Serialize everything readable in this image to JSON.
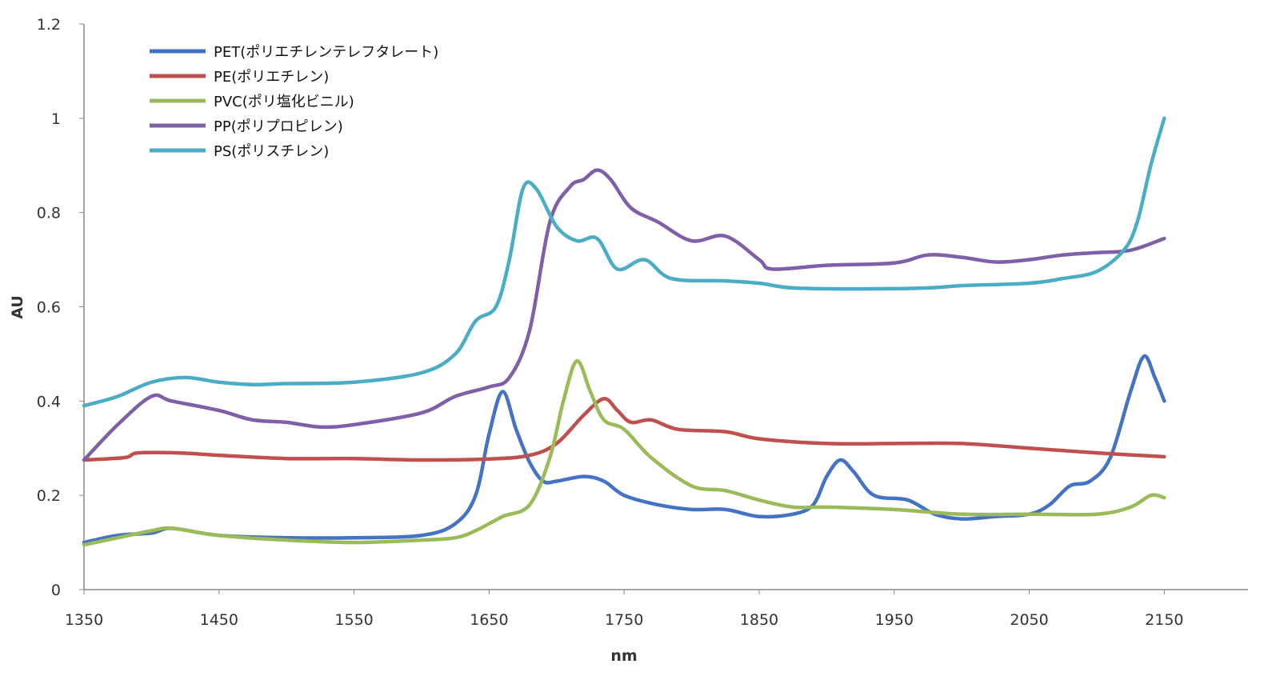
{
  "chart_data": {
    "type": "line",
    "title": "",
    "xlabel": "nm",
    "ylabel": "AU",
    "xlim": [
      1350,
      2212
    ],
    "ylim": [
      0,
      1.2
    ],
    "grid": false,
    "legend_position": "top-left",
    "x_ticks": [
      "1350",
      "1450",
      "1550",
      "1650",
      "1750",
      "1850",
      "1950",
      "2050",
      "2150"
    ],
    "y_ticks": [
      "0",
      "0.2",
      "0.4",
      "0.6",
      "0.8",
      "1",
      "1.2"
    ],
    "series": [
      {
        "name": "PET(ポリエチレンテレフタレート)",
        "color": "#4472C4",
        "x": [
          1350,
          1375,
          1400,
          1415,
          1450,
          1500,
          1550,
          1600,
          1625,
          1640,
          1650,
          1660,
          1670,
          1680,
          1690,
          1700,
          1720,
          1735,
          1750,
          1775,
          1800,
          1825,
          1850,
          1875,
          1890,
          1900,
          1910,
          1920,
          1935,
          1960,
          1980,
          2000,
          2025,
          2050,
          2065,
          2080,
          2095,
          2110,
          2125,
          2135,
          2143,
          2150
        ],
        "y": [
          0.1,
          0.115,
          0.12,
          0.13,
          0.115,
          0.11,
          0.11,
          0.115,
          0.14,
          0.2,
          0.33,
          0.42,
          0.34,
          0.27,
          0.23,
          0.23,
          0.24,
          0.23,
          0.2,
          0.18,
          0.17,
          0.17,
          0.155,
          0.16,
          0.18,
          0.24,
          0.275,
          0.25,
          0.2,
          0.19,
          0.16,
          0.15,
          0.155,
          0.16,
          0.18,
          0.22,
          0.23,
          0.28,
          0.42,
          0.495,
          0.45,
          0.4
        ]
      },
      {
        "name": "PE(ポリエチレン)",
        "color": "#C0504D",
        "x": [
          1350,
          1380,
          1390,
          1420,
          1450,
          1500,
          1550,
          1600,
          1650,
          1680,
          1700,
          1720,
          1735,
          1745,
          1755,
          1770,
          1790,
          1825,
          1850,
          1900,
          1950,
          2000,
          2050,
          2100,
          2150
        ],
        "y": [
          0.275,
          0.28,
          0.29,
          0.29,
          0.285,
          0.278,
          0.278,
          0.275,
          0.277,
          0.285,
          0.31,
          0.37,
          0.405,
          0.38,
          0.355,
          0.36,
          0.34,
          0.335,
          0.32,
          0.31,
          0.31,
          0.31,
          0.3,
          0.29,
          0.282
        ]
      },
      {
        "name": "PVC(ポリ塩化ビニル)",
        "color": "#9BBB59",
        "x": [
          1350,
          1375,
          1400,
          1415,
          1450,
          1500,
          1550,
          1600,
          1625,
          1640,
          1660,
          1680,
          1695,
          1705,
          1715,
          1725,
          1735,
          1750,
          1770,
          1800,
          1825,
          1850,
          1875,
          1900,
          1950,
          2000,
          2050,
          2100,
          2125,
          2140,
          2150
        ],
        "y": [
          0.095,
          0.11,
          0.125,
          0.13,
          0.115,
          0.105,
          0.1,
          0.105,
          0.11,
          0.125,
          0.155,
          0.18,
          0.28,
          0.4,
          0.485,
          0.42,
          0.36,
          0.34,
          0.28,
          0.22,
          0.21,
          0.19,
          0.175,
          0.175,
          0.17,
          0.16,
          0.16,
          0.16,
          0.175,
          0.2,
          0.195
        ]
      },
      {
        "name": "PP(ポリプロピレン)",
        "color": "#7F5FA8",
        "x": [
          1350,
          1375,
          1400,
          1415,
          1450,
          1475,
          1500,
          1525,
          1550,
          1600,
          1625,
          1650,
          1665,
          1680,
          1695,
          1710,
          1720,
          1730,
          1740,
          1755,
          1775,
          1800,
          1825,
          1850,
          1860,
          1900,
          1950,
          1975,
          2000,
          2025,
          2050,
          2075,
          2100,
          2125,
          2150
        ],
        "y": [
          0.275,
          0.35,
          0.41,
          0.4,
          0.38,
          0.36,
          0.355,
          0.345,
          0.35,
          0.375,
          0.41,
          0.43,
          0.45,
          0.55,
          0.78,
          0.855,
          0.87,
          0.89,
          0.87,
          0.81,
          0.78,
          0.74,
          0.75,
          0.7,
          0.68,
          0.688,
          0.693,
          0.71,
          0.705,
          0.695,
          0.7,
          0.71,
          0.715,
          0.72,
          0.745
        ]
      },
      {
        "name": "PS(ポリスチレン)",
        "color": "#4BACC6",
        "x": [
          1350,
          1375,
          1400,
          1425,
          1450,
          1475,
          1500,
          1550,
          1600,
          1625,
          1640,
          1655,
          1665,
          1675,
          1685,
          1700,
          1715,
          1730,
          1745,
          1765,
          1785,
          1825,
          1850,
          1875,
          1925,
          1975,
          2000,
          2050,
          2075,
          2100,
          2120,
          2130,
          2140,
          2150
        ],
        "y": [
          0.39,
          0.41,
          0.44,
          0.45,
          0.44,
          0.435,
          0.437,
          0.44,
          0.46,
          0.5,
          0.57,
          0.6,
          0.7,
          0.85,
          0.85,
          0.77,
          0.74,
          0.745,
          0.68,
          0.7,
          0.66,
          0.655,
          0.65,
          0.64,
          0.638,
          0.64,
          0.645,
          0.65,
          0.66,
          0.675,
          0.72,
          0.78,
          0.9,
          1.0
        ]
      }
    ]
  }
}
